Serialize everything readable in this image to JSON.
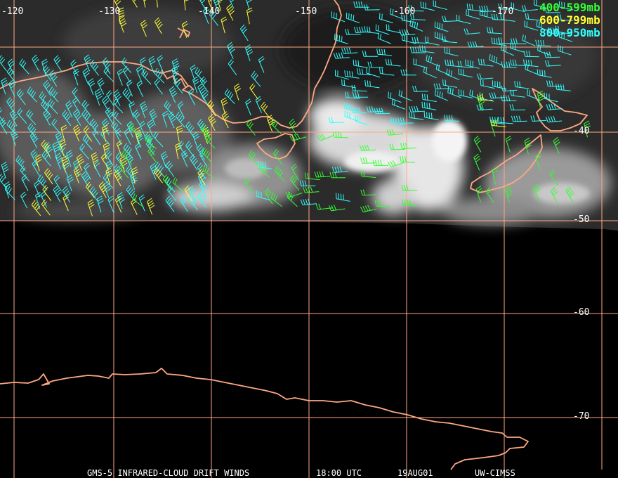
{
  "colors": {
    "coast": "#ffa882",
    "grid": "#ffa882",
    "label": "#ffffff",
    "level_400_599": "#33ff33",
    "level_600_799": "#ffff33",
    "level_800_950": "#33ffff"
  },
  "longitude_labels": [
    "-120",
    "-130",
    "-140",
    "-150",
    "-160",
    "-170"
  ],
  "latitude_labels": [
    "-40",
    "-50",
    "-60",
    "-70"
  ],
  "legend": [
    {
      "label": "400-599mb",
      "color": "#33ff33"
    },
    {
      "label": "600-799mb",
      "color": "#ffff33"
    },
    {
      "label": "800-950mb",
      "color": "#33ffff"
    }
  ],
  "caption": {
    "product": "GMS-5 INFRARED-CLOUD DRIFT WINDS",
    "time": "18:00 UTC",
    "date": "19AUG01",
    "source": "UW-CIMSS"
  }
}
